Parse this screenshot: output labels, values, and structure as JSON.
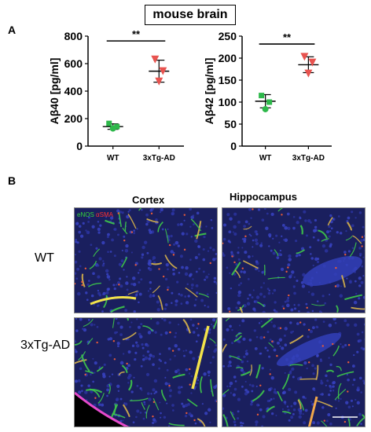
{
  "figure_title": "mouse brain",
  "panels": {
    "a": "A",
    "b": "B"
  },
  "chart_data": [
    {
      "type": "scatter",
      "title": "",
      "xlabel": "",
      "ylabel": "Aβ40 [pg/ml]",
      "categories": [
        "WT",
        "3xTg-AD"
      ],
      "ylim": [
        0,
        800
      ],
      "yticks": [
        0,
        200,
        400,
        600,
        800
      ],
      "series": [
        {
          "values": [
            [
              165,
              142,
              128
            ],
            [
              630,
              545,
              470
            ]
          ],
          "mean": [
            142,
            545
          ],
          "sd": [
            20,
            80
          ],
          "colors": [
            "#2db84a",
            "#e8534f"
          ]
        }
      ],
      "annotation": "**"
    },
    {
      "type": "scatter",
      "title": "",
      "xlabel": "",
      "ylabel": "Aβ42 [pg/ml]",
      "categories": [
        "WT",
        "3xTg-AD"
      ],
      "ylim": [
        0,
        250
      ],
      "yticks": [
        0,
        50,
        100,
        150,
        200,
        250
      ],
      "series": [
        {
          "values": [
            [
              115,
              100,
              84
            ],
            [
              203,
              190,
              165
            ]
          ],
          "mean": [
            102,
            185
          ],
          "sd": [
            15,
            18
          ],
          "colors": [
            "#2db84a",
            "#e8534f"
          ]
        }
      ],
      "annotation": "**"
    }
  ],
  "micrographs": {
    "columns": [
      "Cortex",
      "Hippocampus"
    ],
    "rows": [
      "WT",
      "3xTg-AD"
    ],
    "stain_legend": {
      "green": "eNOS",
      "red": "αSMA"
    }
  }
}
